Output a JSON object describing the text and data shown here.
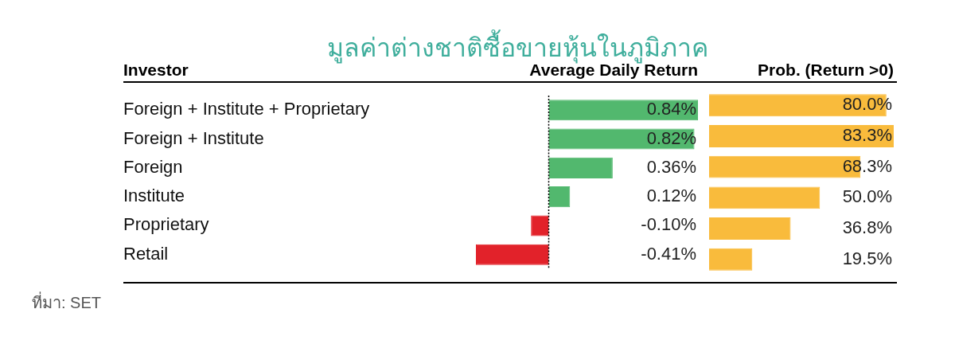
{
  "chart_data": [
    {
      "type": "bar",
      "orientation": "horizontal",
      "title": "มูลค่าต่างชาติซื้อขายหุ้นในภูมิภาค",
      "ylabel": "Investor",
      "xlabel": "Average Daily Return",
      "categories": [
        "Foreign + Institute + Proprietary",
        "Foreign + Institute",
        "Foreign",
        "Institute",
        "Proprietary",
        "Retail"
      ],
      "values": [
        0.84,
        0.82,
        0.36,
        0.12,
        -0.1,
        -0.41
      ],
      "colors": [
        "#52b86e",
        "#52b86e",
        "#52b86e",
        "#52b86e",
        "#e2222a",
        "#e2222a"
      ],
      "value_labels": [
        "0.84%",
        "0.82%",
        "0.36%",
        "0.12%",
        "-0.10%",
        "-0.41%"
      ],
      "ref_lines": [
        {
          "axis": "x",
          "value": 0,
          "line_style": "dotted",
          "color": "#000000"
        }
      ],
      "annotations": [
        "ที่มา: SET"
      ]
    },
    {
      "type": "bar",
      "orientation": "horizontal",
      "xlabel": "Prob. (Return >0)",
      "tick_labels": false,
      "values": [
        80.0,
        83.3,
        68.3,
        50.0,
        36.8,
        19.5
      ],
      "color": "#f9bb3c",
      "value_labels": [
        "80.0%",
        "83.3%",
        "68.3%",
        "50.0%",
        "36.8%",
        "19.5%"
      ]
    }
  ]
}
